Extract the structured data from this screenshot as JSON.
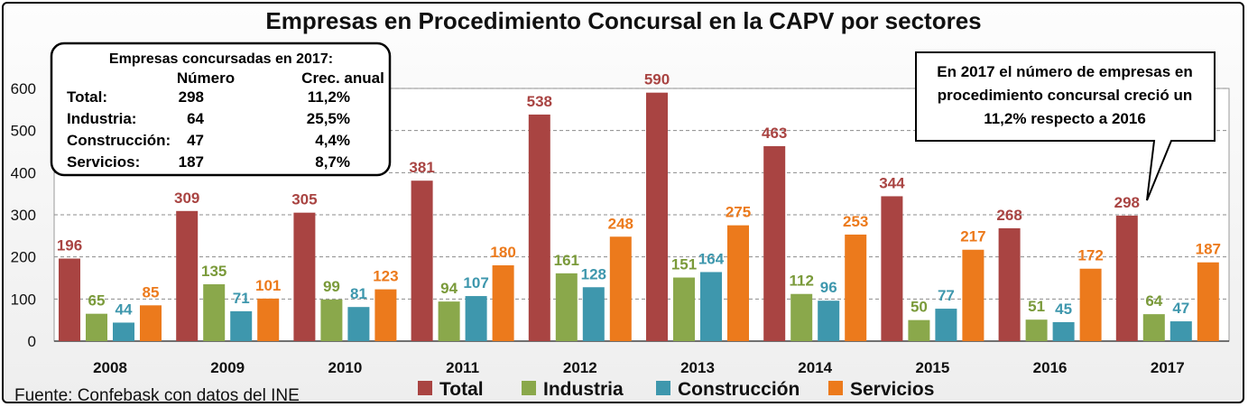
{
  "chart_data": {
    "type": "bar",
    "title": "Empresas en Procedimiento Concursal en la CAPV por sectores",
    "categories": [
      "2008",
      "2009",
      "2010",
      "2011",
      "2012",
      "2013",
      "2014",
      "2015",
      "2016",
      "2017"
    ],
    "series": [
      {
        "name": "Total",
        "color": "#a94442",
        "values": [
          196,
          309,
          305,
          381,
          538,
          590,
          463,
          344,
          268,
          298
        ]
      },
      {
        "name": "Industria",
        "color": "#8aa84b",
        "values": [
          65,
          135,
          99,
          94,
          161,
          151,
          112,
          50,
          51,
          64
        ]
      },
      {
        "name": "Construcción",
        "color": "#3e97ad",
        "values": [
          44,
          71,
          81,
          107,
          128,
          164,
          96,
          77,
          45,
          47
        ]
      },
      {
        "name": "Servicios",
        "color": "#ec7a1c",
        "values": [
          85,
          101,
          123,
          180,
          248,
          275,
          253,
          217,
          172,
          187
        ]
      }
    ],
    "label_colors": [
      "#a94442",
      "#7a9a3a",
      "#3e97ad",
      "#ec7a1c"
    ],
    "yticks": [
      "0",
      "100",
      "200",
      "300",
      "400",
      "500",
      "600"
    ],
    "ylim": [
      0,
      600
    ],
    "grid": "horizontal dashed",
    "legend_position": "bottom",
    "source": "Fuente: Confebask con datos del INE"
  },
  "summary_box": {
    "title": "Empresas concursadas en 2017:",
    "col_numero": "Número",
    "col_crec": "Crec. anual",
    "rows": [
      {
        "label": "Total:",
        "numero": "298",
        "crec": "11,2%"
      },
      {
        "label": "Industria:",
        "numero": "64",
        "crec": "25,5%"
      },
      {
        "label": "Construcción:",
        "numero": "47",
        "crec": "4,4%"
      },
      {
        "label": "Servicios:",
        "numero": "187",
        "crec": "8,7%"
      }
    ]
  },
  "callout": {
    "lines": [
      "En 2017 el número de empresas en",
      "procedimiento concursal creció un",
      "11,2% respecto a 2016"
    ]
  }
}
